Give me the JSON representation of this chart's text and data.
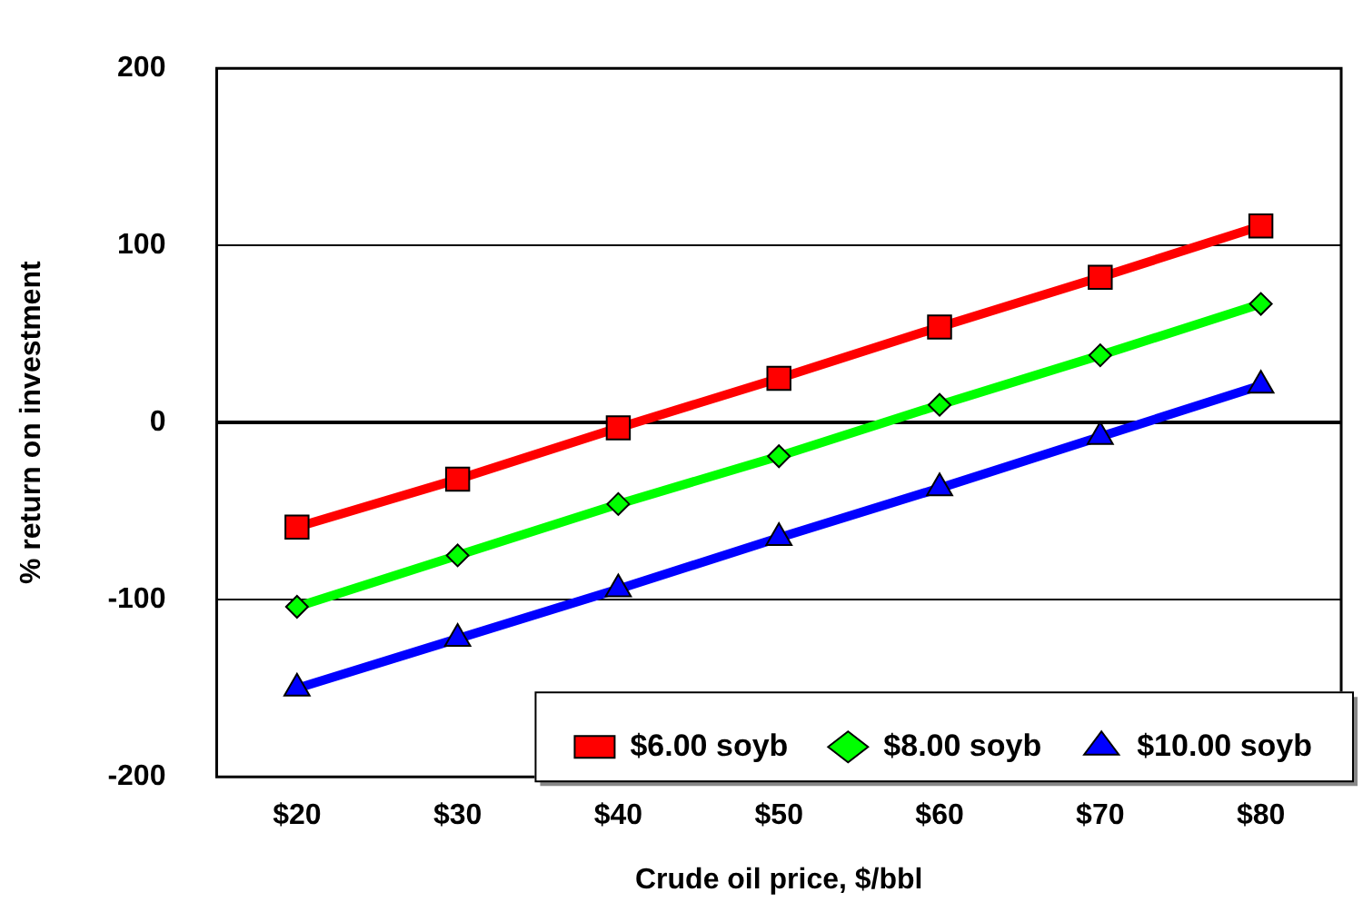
{
  "chart_data": {
    "type": "line",
    "xlabel": "Crude oil price, $/bbl",
    "ylabel": "% return on investment",
    "categories": [
      "$20",
      "$30",
      "$40",
      "$50",
      "$60",
      "$70",
      "$80"
    ],
    "series": [
      {
        "name": "$6.00 soyb",
        "color": "#ff0000",
        "marker": "square",
        "values": [
          -59,
          -32,
          -3,
          25,
          54,
          82,
          111
        ]
      },
      {
        "name": "$8.00 soyb",
        "color": "#00ff00",
        "marker": "diamond",
        "values": [
          -104,
          -75,
          -46,
          -19,
          10,
          38,
          67
        ]
      },
      {
        "name": "$10.00 soyb",
        "color": "#0000ff",
        "marker": "triangle",
        "values": [
          -150,
          -122,
          -94,
          -65,
          -37,
          -8,
          21
        ]
      }
    ],
    "ylim": [
      -200,
      200
    ],
    "yticks": [
      -200,
      -100,
      0,
      100,
      200
    ],
    "grid": "y",
    "legend": "bottom right"
  }
}
